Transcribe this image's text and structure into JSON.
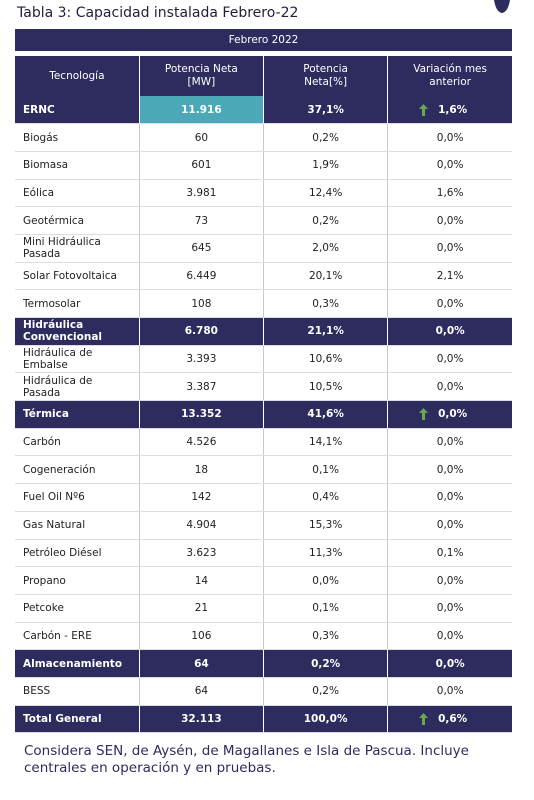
{
  "title": "Tabla 3: Capacidad instalada Febrero-22",
  "table": {
    "period": "Febrero 2022",
    "columns": [
      "Tecnología",
      "Potencia Neta\n[MW]",
      "Potencia\nNeta[%]",
      "Variación mes\nanterior"
    ],
    "groups": [
      {
        "name": "ERNC",
        "mw": "11.916",
        "pct": "37,1%",
        "var": "1,6%",
        "trend": "up",
        "items": [
          [
            "Biogás",
            "60",
            "0,2%",
            "0,0%"
          ],
          [
            "Biomasa",
            "601",
            "1,9%",
            "0,0%"
          ],
          [
            "Eólica",
            "3.981",
            "12,4%",
            "1,6%"
          ],
          [
            "Geotérmica",
            "73",
            "0,2%",
            "0,0%"
          ],
          [
            "Mini Hidráulica Pasada",
            "645",
            "2,0%",
            "0,0%"
          ],
          [
            "Solar Fotovoltaica",
            "6.449",
            "20,1%",
            "2,1%"
          ],
          [
            "Termosolar",
            "108",
            "0,3%",
            "0,0%"
          ]
        ]
      },
      {
        "name": "Hidráulica Convencional",
        "mw": "6.780",
        "pct": "21,1%",
        "var": "0,0%",
        "items": [
          [
            "Hidráulica de Embalse",
            "3.393",
            "10,6%",
            "0,0%"
          ],
          [
            "Hidráulica de Pasada",
            "3.387",
            "10,5%",
            "0,0%"
          ]
        ]
      },
      {
        "name": "Térmica",
        "mw": "13.352",
        "pct": "41,6%",
        "var": "0,0%",
        "trend": "up",
        "items": [
          [
            "Carbón",
            "4.526",
            "14,1%",
            "0,0%"
          ],
          [
            "Cogeneración",
            "18",
            "0,1%",
            "0,0%"
          ],
          [
            "Fuel Oil Nº6",
            "142",
            "0,4%",
            "0,0%"
          ],
          [
            "Gas Natural",
            "4.904",
            "15,3%",
            "0,0%"
          ],
          [
            "Petróleo Diésel",
            "3.623",
            "11,3%",
            "0,1%"
          ],
          [
            "Propano",
            "14",
            "0,0%",
            "0,0%"
          ],
          [
            "Petcoke",
            "21",
            "0,1%",
            "0,0%"
          ],
          [
            "Carbón - ERE",
            "106",
            "0,3%",
            "0,0%"
          ]
        ]
      },
      {
        "name": "Almacenamiento",
        "mw": "64",
        "pct": "0,2%",
        "var": "0,0%",
        "items": [
          [
            "BESS",
            "64",
            "0,2%",
            "0,0%"
          ]
        ]
      }
    ],
    "total": {
      "name": "Total General",
      "mw": "32.113",
      "pct": "100,0%",
      "var": "0,6%",
      "trend": "up"
    }
  },
  "footnote": "Considera SEN, de Aysén, de Magallanes e Isla de Pascua.  Incluye centrales en operación y en pruebas."
}
